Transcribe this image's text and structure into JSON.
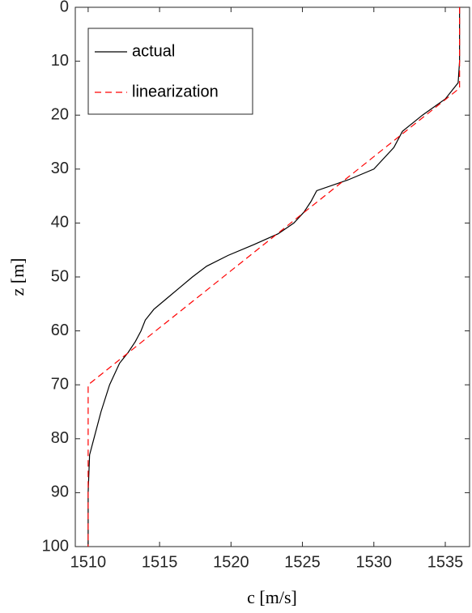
{
  "chart_data": {
    "type": "line",
    "xlabel": "c [m/s]",
    "ylabel": "z [m]",
    "xlim": [
      1509.1,
      1536.7
    ],
    "xticks": [
      1510,
      1515,
      1520,
      1525,
      1530,
      1535
    ],
    "ylim": [
      0,
      100
    ],
    "yticks": [
      0,
      10,
      20,
      30,
      40,
      50,
      60,
      70,
      80,
      90,
      100
    ],
    "y_reversed": true,
    "legend": "northwest",
    "series": [
      {
        "name": "actual",
        "color": "#000000",
        "dash": "solid",
        "x": [
          1536.0,
          1536.0,
          1535.9,
          1535.6,
          1535.0,
          1533.4,
          1532.0,
          1531.4,
          1530.0,
          1528.2,
          1526.0,
          1525.6,
          1525.1,
          1524.4,
          1523.3,
          1521.6,
          1519.8,
          1518.3,
          1517.3,
          1516.4,
          1515.5,
          1514.6,
          1514.0,
          1513.7,
          1513.3,
          1512.8,
          1512.2,
          1511.5,
          1510.9,
          1510.4,
          1510.1,
          1510.0,
          1510.0
        ],
        "y": [
          0,
          10,
          14,
          15,
          17,
          20,
          23,
          26,
          30,
          32,
          34,
          36,
          38,
          40,
          42,
          44,
          46,
          48,
          50,
          52,
          54,
          56,
          58,
          60,
          62,
          64,
          66,
          70,
          75,
          80,
          83,
          90,
          100
        ]
      },
      {
        "name": "linearization",
        "color": "#ff0000",
        "dash": "dashed",
        "x": [
          1536.0,
          1536.0,
          1510.0,
          1510.0
        ],
        "y": [
          0,
          15,
          70,
          100
        ]
      }
    ]
  }
}
